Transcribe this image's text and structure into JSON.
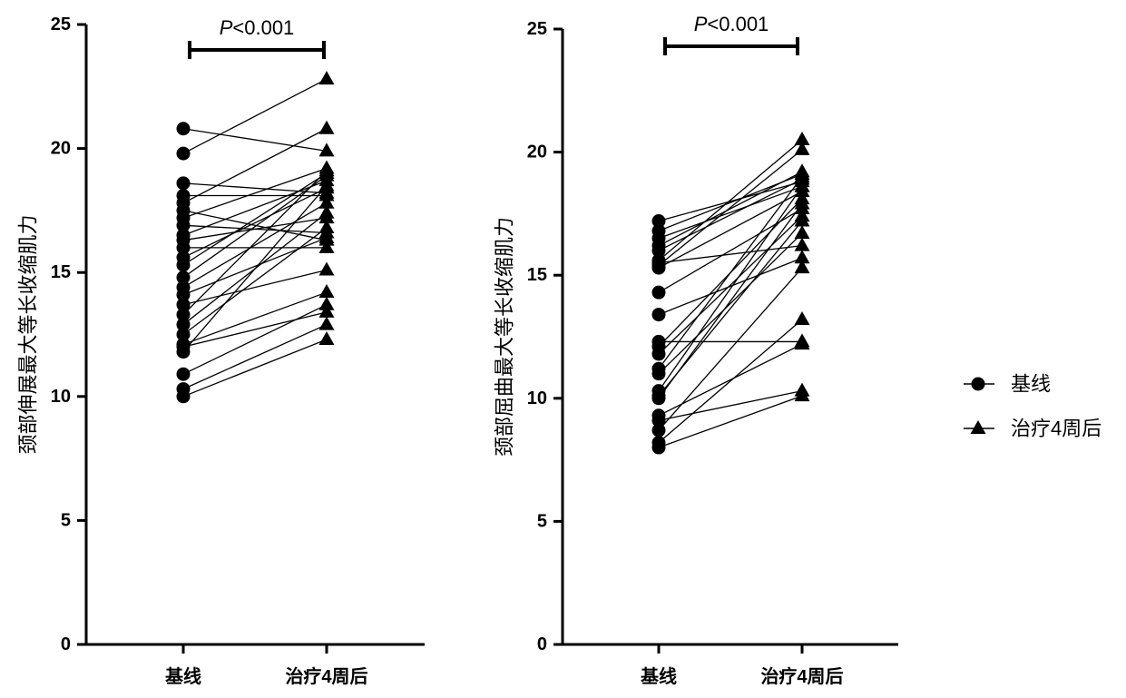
{
  "chart_data": [
    {
      "type": "line",
      "categories": [
        "基线",
        "治疗4周后"
      ],
      "ylabel": "颈部伸展最大等长收缩肌力",
      "ylim": [
        0,
        25
      ],
      "yticks": [
        0,
        5,
        10,
        15,
        20,
        25
      ],
      "annotation": {
        "p": "P",
        "rest": "<0.001"
      },
      "markers": [
        "circle",
        "triangle"
      ],
      "color": "#000000",
      "pairs": [
        [
          20.8,
          19.9
        ],
        [
          19.8,
          22.8
        ],
        [
          18.6,
          18.2
        ],
        [
          18.1,
          18.1
        ],
        [
          17.8,
          20.8
        ],
        [
          17.5,
          16.3
        ],
        [
          17.2,
          19.2
        ],
        [
          16.9,
          16.6
        ],
        [
          16.5,
          18.7
        ],
        [
          16.3,
          17.2
        ],
        [
          16.0,
          16.0
        ],
        [
          15.6,
          18.4
        ],
        [
          15.3,
          19.0
        ],
        [
          14.8,
          18.9
        ],
        [
          14.4,
          17.8
        ],
        [
          14.1,
          16.4
        ],
        [
          13.7,
          15.1
        ],
        [
          13.3,
          19.1
        ],
        [
          12.9,
          17.4
        ],
        [
          12.5,
          16.8
        ],
        [
          12.1,
          14.2
        ],
        [
          11.8,
          18.5
        ],
        [
          12.0,
          13.4
        ],
        [
          10.9,
          13.7
        ],
        [
          10.3,
          12.9
        ],
        [
          10.0,
          12.3
        ]
      ]
    },
    {
      "type": "line",
      "categories": [
        "基线",
        "治疗4周后"
      ],
      "ylabel": "颈部屈曲最大等长收缩肌力",
      "ylim": [
        0,
        25
      ],
      "yticks": [
        0,
        5,
        10,
        15,
        20,
        25
      ],
      "annotation": {
        "p": "P",
        "rest": "<0.001"
      },
      "markers": [
        "circle",
        "triangle"
      ],
      "color": "#000000",
      "pairs": [
        [
          17.2,
          18.8
        ],
        [
          16.8,
          19.1
        ],
        [
          16.5,
          18.6
        ],
        [
          16.2,
          19.2
        ],
        [
          16.0,
          18.9
        ],
        [
          15.6,
          20.5
        ],
        [
          15.5,
          16.2
        ],
        [
          15.4,
          20.1
        ],
        [
          15.3,
          18.4
        ],
        [
          14.3,
          17.7
        ],
        [
          13.4,
          15.7
        ],
        [
          12.3,
          12.3
        ],
        [
          12.1,
          18.1
        ],
        [
          11.8,
          17.4
        ],
        [
          11.2,
          19.0
        ],
        [
          11.0,
          16.7
        ],
        [
          10.3,
          18.6
        ],
        [
          10.1,
          17.2
        ],
        [
          10.0,
          17.9
        ],
        [
          9.3,
          12.2
        ],
        [
          9.1,
          10.3
        ],
        [
          8.7,
          15.3
        ],
        [
          8.2,
          13.2
        ],
        [
          8.0,
          10.1
        ]
      ]
    }
  ],
  "legend": {
    "position": "right",
    "items": [
      {
        "label": "基线",
        "marker": "circle"
      },
      {
        "label": "治疗4周后",
        "marker": "triangle"
      }
    ]
  }
}
